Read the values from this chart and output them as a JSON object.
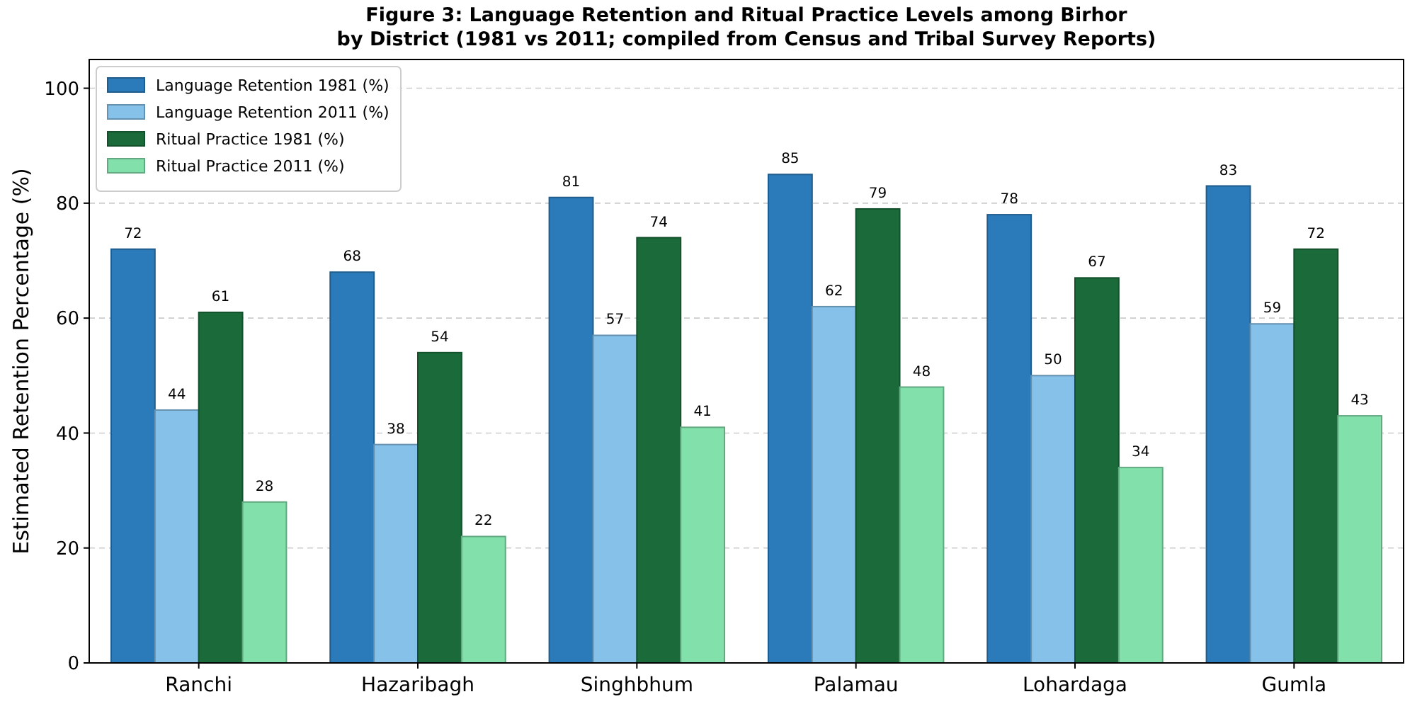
{
  "chart_data": {
    "type": "bar",
    "title": "Figure 3: Language Retention and Ritual Practice Levels among Birhor\nby District (1981 vs 2011; compiled from Census and Tribal Survey Reports)",
    "ylabel": "Estimated Retention Percentage (%)",
    "categories": [
      "Ranchi",
      "Hazaribagh",
      "Singhbhum",
      "Palamau",
      "Lohardaga",
      "Gumla"
    ],
    "series": [
      {
        "name": "Language Retention 1981 (%)",
        "color": "#2b7bba",
        "values": [
          72,
          68,
          81,
          85,
          78,
          83
        ]
      },
      {
        "name": "Language Retention 2011 (%)",
        "color": "#85c1e9",
        "values": [
          44,
          38,
          57,
          62,
          50,
          59
        ]
      },
      {
        "name": "Ritual Practice 1981 (%)",
        "color": "#1b6b3a",
        "values": [
          61,
          54,
          74,
          79,
          67,
          72
        ]
      },
      {
        "name": "Ritual Practice 2011 (%)",
        "color": "#82e0aa",
        "values": [
          28,
          22,
          41,
          48,
          34,
          43
        ]
      }
    ],
    "ylim": [
      0,
      105
    ],
    "yticks": [
      0,
      20,
      40,
      60,
      80,
      100
    ],
    "grid": "y",
    "legend": "top left",
    "data_labels": true
  }
}
